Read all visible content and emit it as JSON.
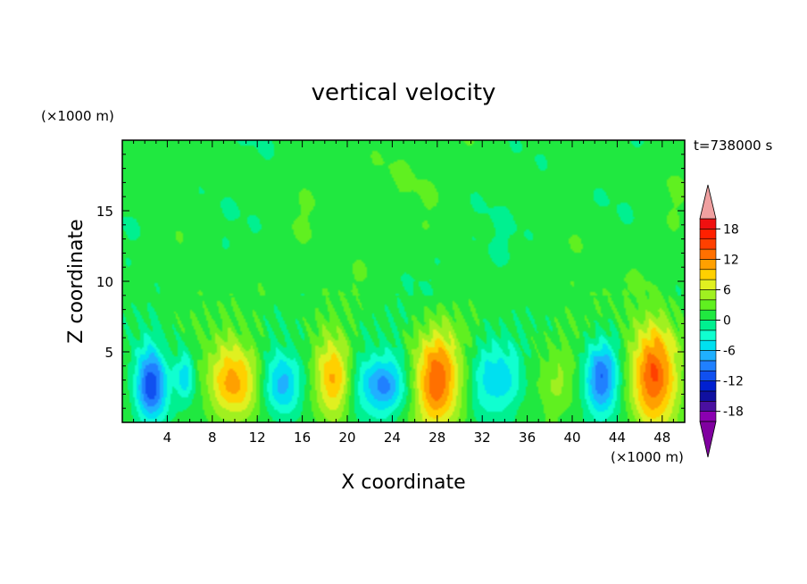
{
  "chart_data": {
    "type": "heatmap",
    "title": "vertical velocity",
    "xlabel": "X coordinate",
    "ylabel": "Z coordinate",
    "x_unit": "(×1000 m)",
    "y_unit": "(×1000 m)",
    "time_label": "t=738000 s",
    "xlim": [
      0,
      50
    ],
    "ylim": [
      0,
      20
    ],
    "x_ticks": [
      4,
      8,
      12,
      16,
      20,
      24,
      28,
      32,
      36,
      40,
      44,
      48
    ],
    "y_ticks": [
      5,
      10,
      15
    ],
    "colorbar": {
      "levels": [
        -20,
        -18,
        -16,
        -14,
        -12,
        -10,
        -8,
        -6,
        -4,
        -2,
        0,
        2,
        4,
        6,
        8,
        10,
        12,
        14,
        16,
        18,
        20
      ],
      "tick_labels": [
        "18",
        "12",
        "6",
        "0",
        "-6",
        "-12",
        "-18"
      ],
      "tick_values": [
        18,
        12,
        6,
        0,
        -6,
        -12,
        -18
      ],
      "colors": [
        "#8a00b0",
        "#4a10a0",
        "#1010a0",
        "#0020d0",
        "#1050f0",
        "#2080ff",
        "#20b0ff",
        "#00e0f0",
        "#10ffd0",
        "#00f090",
        "#20e840",
        "#60f020",
        "#a0f020",
        "#e0f020",
        "#ffd000",
        "#ffa000",
        "#ff7000",
        "#ff4000",
        "#ff2000",
        "#f01010"
      ],
      "over_color": "#f0a0a0",
      "under_color": "#8000a0"
    },
    "background_value": 1,
    "features": [
      {
        "x": 2.6,
        "z": 2.6,
        "sx": 1.0,
        "sz": 1.9,
        "amp": -13
      },
      {
        "x": 5.6,
        "z": 3.3,
        "sx": 0.6,
        "sz": 1.3,
        "amp": -7
      },
      {
        "x": 9.9,
        "z": 2.9,
        "sx": 1.5,
        "sz": 2.0,
        "amp": 10
      },
      {
        "x": 14.2,
        "z": 2.7,
        "sx": 1.1,
        "sz": 1.6,
        "amp": -8
      },
      {
        "x": 18.7,
        "z": 3.1,
        "sx": 1.1,
        "sz": 2.1,
        "amp": 10
      },
      {
        "x": 23.2,
        "z": 2.6,
        "sx": 1.6,
        "sz": 1.5,
        "amp": -10
      },
      {
        "x": 28.0,
        "z": 3.0,
        "sx": 1.5,
        "sz": 2.4,
        "amp": 13
      },
      {
        "x": 33.2,
        "z": 3.0,
        "sx": 1.6,
        "sz": 1.8,
        "amp": -7
      },
      {
        "x": 38.7,
        "z": 2.7,
        "sx": 1.4,
        "sz": 1.6,
        "amp": 3
      },
      {
        "x": 42.6,
        "z": 3.2,
        "sx": 1.1,
        "sz": 1.8,
        "amp": -11
      },
      {
        "x": 47.3,
        "z": 3.4,
        "sx": 1.5,
        "sz": 2.7,
        "amp": 13
      }
    ]
  }
}
